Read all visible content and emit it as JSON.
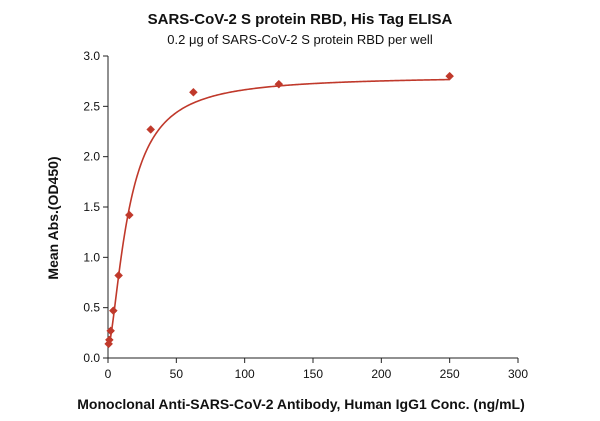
{
  "chart_data": {
    "type": "scatter",
    "title": "SARS-CoV-2 S protein RBD, His Tag ELISA",
    "subtitle": "0.2 μg of SARS-CoV-2 S protein RBD per well",
    "xlabel": "Monoclonal Anti-SARS-CoV-2 Antibody, Human IgG1 Conc. (ng/mL)",
    "ylabel": "Mean Abs.(OD450)",
    "xlim": [
      0,
      300
    ],
    "ylim": [
      0,
      3.0
    ],
    "xticks": [
      "0",
      "50",
      "100",
      "150",
      "200",
      "250",
      "300"
    ],
    "yticks": [
      "0.0",
      "0.5",
      "1.0",
      "1.5",
      "2.0",
      "2.5",
      "3.0"
    ],
    "grid": false,
    "series": [
      {
        "marker": "diamond",
        "color": "#c0392b",
        "fit": "sigmoidal",
        "points": [
          {
            "x": 0.49,
            "y": 0.14
          },
          {
            "x": 0.98,
            "y": 0.18
          },
          {
            "x": 1.95,
            "y": 0.27
          },
          {
            "x": 3.9,
            "y": 0.47
          },
          {
            "x": 7.8,
            "y": 0.82
          },
          {
            "x": 15.6,
            "y": 1.42
          },
          {
            "x": 31.25,
            "y": 2.27
          },
          {
            "x": 62.5,
            "y": 2.64
          },
          {
            "x": 125,
            "y": 2.72
          },
          {
            "x": 250,
            "y": 2.8
          }
        ]
      }
    ]
  }
}
